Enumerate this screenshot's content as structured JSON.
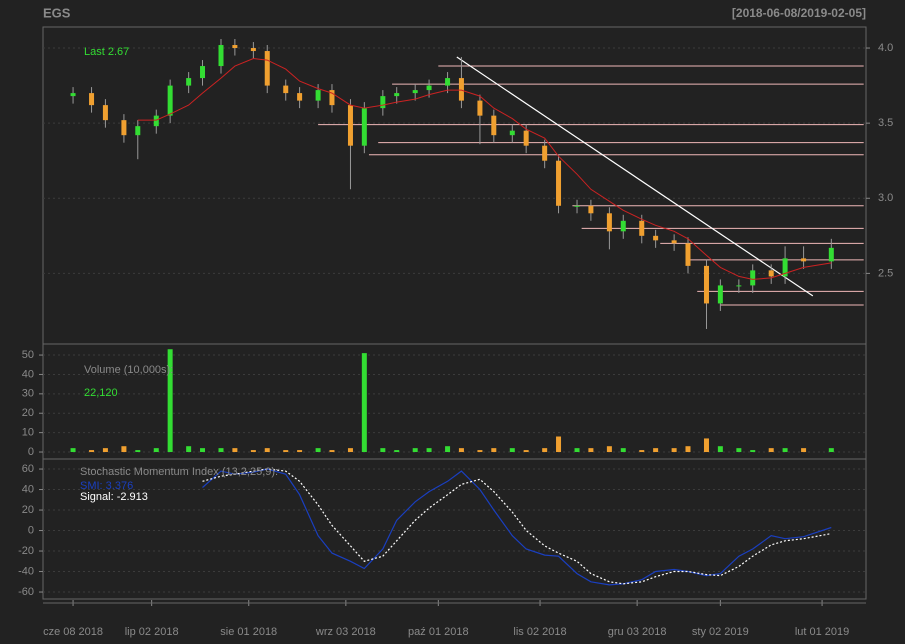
{
  "chart_data": [
    {
      "type": "candlestick",
      "title": "EGS",
      "subtitle": "[2018-06-08/2019-02-05]",
      "annotation": "Last 2.67",
      "up_color": "#33dd33",
      "down_color": "#f0a030",
      "ma_color": "#cc2222",
      "level_color": "#f0b8b8",
      "trend_color": "#ffffff",
      "xlim": [
        -6.5,
        171.5
      ],
      "x": [
        0,
        4,
        7,
        11,
        14,
        18,
        21,
        25,
        28,
        32,
        35,
        39,
        42,
        46,
        49,
        53,
        56,
        60,
        63,
        67,
        70,
        74,
        77,
        81,
        84,
        88,
        91,
        95,
        98,
        102,
        105,
        109,
        112,
        116,
        119,
        123,
        126,
        130,
        133,
        137,
        140,
        144,
        147,
        151,
        154,
        158,
        164
      ],
      "open": [
        3.68,
        3.7,
        3.62,
        3.52,
        3.42,
        3.48,
        3.55,
        3.75,
        3.8,
        3.88,
        4.02,
        4.0,
        3.98,
        3.75,
        3.7,
        3.65,
        3.72,
        3.62,
        3.35,
        3.6,
        3.68,
        3.7,
        3.72,
        3.75,
        3.8,
        3.65,
        3.55,
        3.42,
        3.45,
        3.35,
        3.25,
        2.95,
        2.95,
        2.9,
        2.78,
        2.85,
        2.75,
        2.72,
        2.7,
        2.55,
        2.3,
        2.42,
        2.42,
        2.52,
        2.48,
        2.6,
        2.58
      ],
      "high": [
        3.74,
        3.74,
        3.66,
        3.56,
        3.52,
        3.59,
        3.79,
        3.84,
        3.92,
        4.06,
        4.06,
        4.04,
        4.02,
        3.79,
        3.74,
        3.76,
        3.76,
        3.66,
        3.64,
        3.72,
        3.74,
        3.76,
        3.79,
        3.84,
        3.94,
        3.69,
        3.59,
        3.49,
        3.49,
        3.39,
        3.29,
        2.99,
        2.99,
        2.94,
        2.89,
        2.89,
        2.79,
        2.76,
        2.74,
        2.59,
        2.46,
        2.46,
        2.56,
        2.56,
        2.68,
        2.68,
        2.73
      ],
      "low": [
        3.63,
        3.57,
        3.47,
        3.37,
        3.26,
        3.43,
        3.5,
        3.7,
        3.75,
        3.83,
        3.95,
        3.93,
        3.7,
        3.65,
        3.6,
        3.6,
        3.57,
        3.06,
        3.3,
        3.55,
        3.63,
        3.65,
        3.67,
        3.7,
        3.6,
        3.36,
        3.37,
        3.37,
        3.3,
        3.2,
        2.9,
        2.9,
        2.85,
        2.66,
        2.73,
        2.7,
        2.67,
        2.65,
        2.5,
        2.13,
        2.25,
        2.37,
        2.37,
        2.43,
        2.43,
        2.53,
        2.53
      ],
      "close": [
        3.7,
        3.62,
        3.52,
        3.42,
        3.48,
        3.55,
        3.75,
        3.8,
        3.88,
        4.02,
        4.0,
        3.98,
        3.75,
        3.7,
        3.65,
        3.72,
        3.62,
        3.35,
        3.6,
        3.68,
        3.7,
        3.72,
        3.75,
        3.8,
        3.65,
        3.55,
        3.42,
        3.45,
        3.35,
        3.25,
        2.95,
        2.95,
        2.9,
        2.78,
        2.85,
        2.75,
        2.72,
        2.7,
        2.55,
        2.3,
        2.42,
        2.42,
        2.52,
        2.48,
        2.6,
        2.58,
        2.67
      ],
      "ma": [
        null,
        null,
        null,
        null,
        3.52,
        3.52,
        3.56,
        3.62,
        3.7,
        3.8,
        3.88,
        3.93,
        3.92,
        3.86,
        3.78,
        3.73,
        3.7,
        3.62,
        3.6,
        3.62,
        3.64,
        3.66,
        3.69,
        3.72,
        3.72,
        3.68,
        3.6,
        3.53,
        3.46,
        3.4,
        3.28,
        3.16,
        3.06,
        2.98,
        2.92,
        2.86,
        2.82,
        2.78,
        2.73,
        2.62,
        2.54,
        2.48,
        2.46,
        2.47,
        2.5,
        2.54,
        2.57
      ],
      "levels": [
        {
          "value": 3.88,
          "from": 79
        },
        {
          "value": 3.76,
          "from": 69
        },
        {
          "value": 3.49,
          "from": 53
        },
        {
          "value": 3.37,
          "from": 66
        },
        {
          "value": 3.29,
          "from": 64
        },
        {
          "value": 2.95,
          "from": 108
        },
        {
          "value": 2.8,
          "from": 110
        },
        {
          "value": 2.7,
          "from": 127
        },
        {
          "value": 2.59,
          "from": 133
        },
        {
          "value": 2.38,
          "from": 135
        },
        {
          "value": 2.29,
          "from": 140
        }
      ],
      "level_end": 171,
      "trendline": {
        "x": [
          83,
          160
        ],
        "y": [
          3.94,
          2.35
        ]
      },
      "ylim": [
        2.03,
        4.14
      ],
      "yticks": [
        2.5,
        {
          "value": 3,
          "label": "3.0"
        },
        3.5,
        {
          "value": 4,
          "label": "4.0"
        }
      ]
    },
    {
      "type": "bar",
      "title": "Volume (10,000s):",
      "annotation": "22,120",
      "values": [
        2,
        1,
        2,
        3,
        1,
        2,
        53,
        3,
        2,
        2,
        2,
        1,
        2,
        1,
        1,
        2,
        1,
        2,
        51,
        2,
        1,
        2,
        2,
        3,
        2,
        1,
        2,
        2,
        1,
        2,
        8,
        2,
        2,
        3,
        2,
        1,
        2,
        2,
        3,
        7,
        3,
        2,
        1,
        2,
        2,
        2,
        2
      ],
      "ylim": [
        -3.6,
        55.7
      ],
      "yticks": [
        0,
        10,
        20,
        30,
        40,
        50
      ]
    },
    {
      "type": "line",
      "title": "Stochastic Momentum Index (13,2,25,9):",
      "series": [
        {
          "name": "SMI: 3.376",
          "color": "#1a3fc0",
          "dash": false,
          "values": [
            null,
            null,
            null,
            null,
            null,
            null,
            null,
            null,
            42,
            58,
            55,
            57,
            60,
            55,
            35,
            -5,
            -22,
            -30,
            -37,
            -18,
            10,
            28,
            38,
            48,
            58,
            40,
            20,
            -5,
            -18,
            -24,
            -25,
            -42,
            -50,
            -53,
            -52,
            -48,
            -40,
            -38,
            -40,
            -44,
            -42,
            -25,
            -18,
            -5,
            -8,
            -6,
            3
          ]
        },
        {
          "name": "Signal: -2.913",
          "color": "#ffffff",
          "dash": true,
          "values": [
            null,
            null,
            null,
            null,
            null,
            null,
            null,
            null,
            48,
            53,
            55,
            58,
            60,
            58,
            48,
            25,
            5,
            -15,
            -30,
            -25,
            -10,
            10,
            22,
            35,
            45,
            50,
            38,
            18,
            0,
            -15,
            -22,
            -30,
            -42,
            -50,
            -52,
            -50,
            -45,
            -40,
            -40,
            -43,
            -44,
            -35,
            -25,
            -14,
            -10,
            -8,
            -3
          ]
        }
      ],
      "ylim": [
        -66.8,
        69.8
      ],
      "yticks": [
        -60,
        -40,
        -20,
        0,
        20,
        40,
        60
      ],
      "xticks": [
        {
          "value": 0,
          "label": "cze 08 2018"
        },
        {
          "value": 17,
          "label": "lip 02 2018"
        },
        {
          "value": 38,
          "label": "sie 01 2018"
        },
        {
          "value": 59,
          "label": "wrz 03 2018"
        },
        {
          "value": 79,
          "label": "paź 01 2018"
        },
        {
          "value": 101,
          "label": "lis 02 2018"
        },
        {
          "value": 122,
          "label": "gru 03 2018"
        },
        {
          "value": 140,
          "label": "sty 02 2019"
        },
        {
          "value": 162,
          "label": "lut 01 2019"
        }
      ]
    }
  ]
}
